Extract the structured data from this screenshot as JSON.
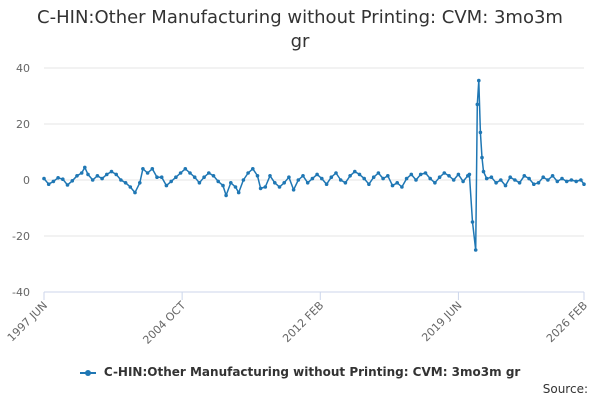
{
  "chart_data": {
    "type": "line",
    "title": "C-HIN:Other Manufacturing without Printing: CVM: 3mo3m gr",
    "xlabel": "",
    "ylabel": "",
    "ylim": [
      -40,
      40
    ],
    "yticks": [
      -40,
      -20,
      0,
      20,
      40
    ],
    "x_range": [
      "1997 JUN",
      "2026 FEB"
    ],
    "xticks": [
      "1997 JUN",
      "2004 OCT",
      "2012 FEB",
      "2019 JUN",
      "2026 FEB"
    ],
    "grid": "horizontal",
    "legend_position": "bottom",
    "series": [
      {
        "name": "C-HIN:Other Manufacturing without Printing: CVM: 3mo3m gr",
        "color": "#1f77b4",
        "points": [
          [
            "1997-06",
            0.5
          ],
          [
            "1997-09",
            -1.5
          ],
          [
            "1997-12",
            -0.5
          ],
          [
            "1998-03",
            0.8
          ],
          [
            "1998-06",
            0.3
          ],
          [
            "1998-09",
            -1.8
          ],
          [
            "1998-12",
            -0.3
          ],
          [
            "1999-03",
            1.5
          ],
          [
            "1999-06",
            2.5
          ],
          [
            "1999-08",
            4.5
          ],
          [
            "1999-10",
            2.0
          ],
          [
            "2000-01",
            0.0
          ],
          [
            "2000-04",
            1.5
          ],
          [
            "2000-07",
            0.5
          ],
          [
            "2000-10",
            2.0
          ],
          [
            "2001-01",
            3.0
          ],
          [
            "2001-04",
            2.0
          ],
          [
            "2001-07",
            0.0
          ],
          [
            "2001-10",
            -1.0
          ],
          [
            "2002-01",
            -2.5
          ],
          [
            "2002-04",
            -4.5
          ],
          [
            "2002-07",
            -1.0
          ],
          [
            "2002-09",
            4.0
          ],
          [
            "2002-12",
            2.5
          ],
          [
            "2003-03",
            4.0
          ],
          [
            "2003-06",
            1.0
          ],
          [
            "2003-09",
            1.0
          ],
          [
            "2003-12",
            -2.0
          ],
          [
            "2004-03",
            -0.5
          ],
          [
            "2004-06",
            1.0
          ],
          [
            "2004-09",
            2.5
          ],
          [
            "2004-12",
            4.0
          ],
          [
            "2005-03",
            2.5
          ],
          [
            "2005-06",
            1.0
          ],
          [
            "2005-09",
            -1.0
          ],
          [
            "2005-12",
            1.0
          ],
          [
            "2006-03",
            2.5
          ],
          [
            "2006-06",
            1.5
          ],
          [
            "2006-09",
            -0.5
          ],
          [
            "2006-12",
            -2.0
          ],
          [
            "2007-02",
            -5.5
          ],
          [
            "2007-05",
            -1.0
          ],
          [
            "2007-08",
            -2.5
          ],
          [
            "2007-10",
            -4.5
          ],
          [
            "2008-01",
            0.0
          ],
          [
            "2008-04",
            2.5
          ],
          [
            "2008-07",
            4.0
          ],
          [
            "2008-10",
            1.5
          ],
          [
            "2008-12",
            -3.0
          ],
          [
            "2009-03",
            -2.5
          ],
          [
            "2009-06",
            1.5
          ],
          [
            "2009-09",
            -1.0
          ],
          [
            "2009-12",
            -2.5
          ],
          [
            "2010-03",
            -1.0
          ],
          [
            "2010-06",
            1.0
          ],
          [
            "2010-09",
            -3.5
          ],
          [
            "2010-12",
            0.0
          ],
          [
            "2011-03",
            1.5
          ],
          [
            "2011-06",
            -1.0
          ],
          [
            "2011-09",
            0.5
          ],
          [
            "2011-12",
            2.0
          ],
          [
            "2012-03",
            0.5
          ],
          [
            "2012-06",
            -1.5
          ],
          [
            "2012-09",
            1.0
          ],
          [
            "2012-12",
            2.5
          ],
          [
            "2013-03",
            0.0
          ],
          [
            "2013-06",
            -1.0
          ],
          [
            "2013-09",
            1.5
          ],
          [
            "2013-12",
            3.0
          ],
          [
            "2014-03",
            2.0
          ],
          [
            "2014-06",
            0.5
          ],
          [
            "2014-09",
            -1.5
          ],
          [
            "2014-12",
            1.0
          ],
          [
            "2015-03",
            2.5
          ],
          [
            "2015-06",
            0.5
          ],
          [
            "2015-09",
            1.5
          ],
          [
            "2015-12",
            -2.0
          ],
          [
            "2016-03",
            -1.0
          ],
          [
            "2016-06",
            -2.5
          ],
          [
            "2016-09",
            0.5
          ],
          [
            "2016-12",
            2.0
          ],
          [
            "2017-03",
            0.0
          ],
          [
            "2017-06",
            2.0
          ],
          [
            "2017-09",
            2.5
          ],
          [
            "2017-12",
            0.5
          ],
          [
            "2018-03",
            -1.0
          ],
          [
            "2018-06",
            1.0
          ],
          [
            "2018-09",
            2.5
          ],
          [
            "2018-12",
            1.5
          ],
          [
            "2019-03",
            0.0
          ],
          [
            "2019-06",
            2.0
          ],
          [
            "2019-09",
            -0.5
          ],
          [
            "2019-12",
            1.5
          ],
          [
            "2020-01",
            2.0
          ],
          [
            "2020-03",
            -15.0
          ],
          [
            "2020-05",
            -25.0
          ],
          [
            "2020-06",
            27.0
          ],
          [
            "2020-07",
            35.5
          ],
          [
            "2020-08",
            17.0
          ],
          [
            "2020-09",
            8.0
          ],
          [
            "2020-10",
            3.0
          ],
          [
            "2020-12",
            0.5
          ],
          [
            "2021-03",
            1.0
          ],
          [
            "2021-06",
            -1.0
          ],
          [
            "2021-09",
            0.0
          ],
          [
            "2021-12",
            -2.0
          ],
          [
            "2022-03",
            1.0
          ],
          [
            "2022-06",
            0.0
          ],
          [
            "2022-09",
            -1.0
          ],
          [
            "2022-12",
            1.5
          ],
          [
            "2023-03",
            0.5
          ],
          [
            "2023-06",
            -1.5
          ],
          [
            "2023-09",
            -1.0
          ],
          [
            "2023-12",
            1.0
          ],
          [
            "2024-03",
            0.0
          ],
          [
            "2024-06",
            1.5
          ],
          [
            "2024-09",
            -0.5
          ],
          [
            "2024-12",
            0.5
          ],
          [
            "2025-03",
            -0.5
          ],
          [
            "2025-06",
            0.0
          ],
          [
            "2025-09",
            -0.5
          ],
          [
            "2025-12",
            0.0
          ],
          [
            "2026-02",
            -1.5
          ]
        ]
      }
    ]
  },
  "source_label": "Source:"
}
